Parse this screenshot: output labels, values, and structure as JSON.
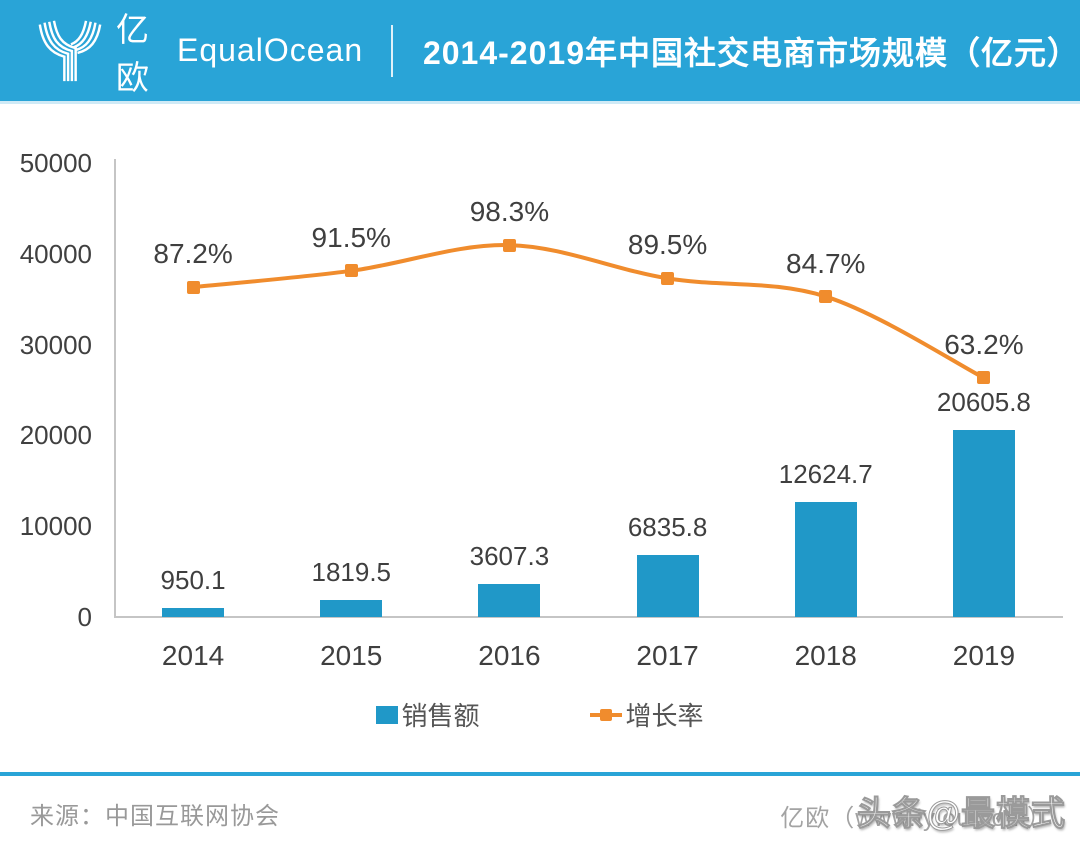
{
  "header": {
    "brand_cn": "亿欧",
    "brand_en": "EqualOcean",
    "title": "2014-2019年中国社交电商市场规模（亿元）"
  },
  "colors": {
    "header_bg": "#29a4d7",
    "bar": "#2098c8",
    "line": "#f08c2d",
    "axis": "#c5c5c5"
  },
  "chart_data": {
    "type": "bar",
    "subtype": "bar+line combo",
    "title": "2014-2019年中国社交电商市场规模（亿元）",
    "categories": [
      "2014",
      "2015",
      "2016",
      "2017",
      "2018",
      "2019"
    ],
    "series": [
      {
        "name": "销售额",
        "type": "bar",
        "values": [
          950.1,
          1819.5,
          3607.3,
          6835.8,
          12624.7,
          20605.8
        ],
        "labels": [
          "950.1",
          "1819.5",
          "3607.3",
          "6835.8",
          "12624.7",
          "20605.8"
        ],
        "color": "#2098c8"
      },
      {
        "name": "增长率",
        "type": "line",
        "values": [
          87.2,
          91.5,
          98.3,
          89.5,
          84.7,
          63.2
        ],
        "labels": [
          "87.2%",
          "91.5%",
          "98.3%",
          "89.5%",
          "84.7%",
          "63.2%"
        ],
        "color": "#f08c2d"
      }
    ],
    "y_axis": {
      "ticks": [
        "0",
        "10000",
        "20000",
        "30000",
        "40000",
        "50000"
      ],
      "min": 0,
      "max": 50000
    },
    "y2_axis": {
      "min": 0,
      "max": 120,
      "visible": false
    },
    "grid": false,
    "legend_position": "bottom"
  },
  "legend": {
    "items": [
      {
        "label": "销售额",
        "kind": "bar"
      },
      {
        "label": "增长率",
        "kind": "line"
      }
    ]
  },
  "footer": {
    "source": "来源：中国互联网协会",
    "credit": "亿欧（www.iyiou.com）",
    "watermark": "头条@最模式"
  }
}
